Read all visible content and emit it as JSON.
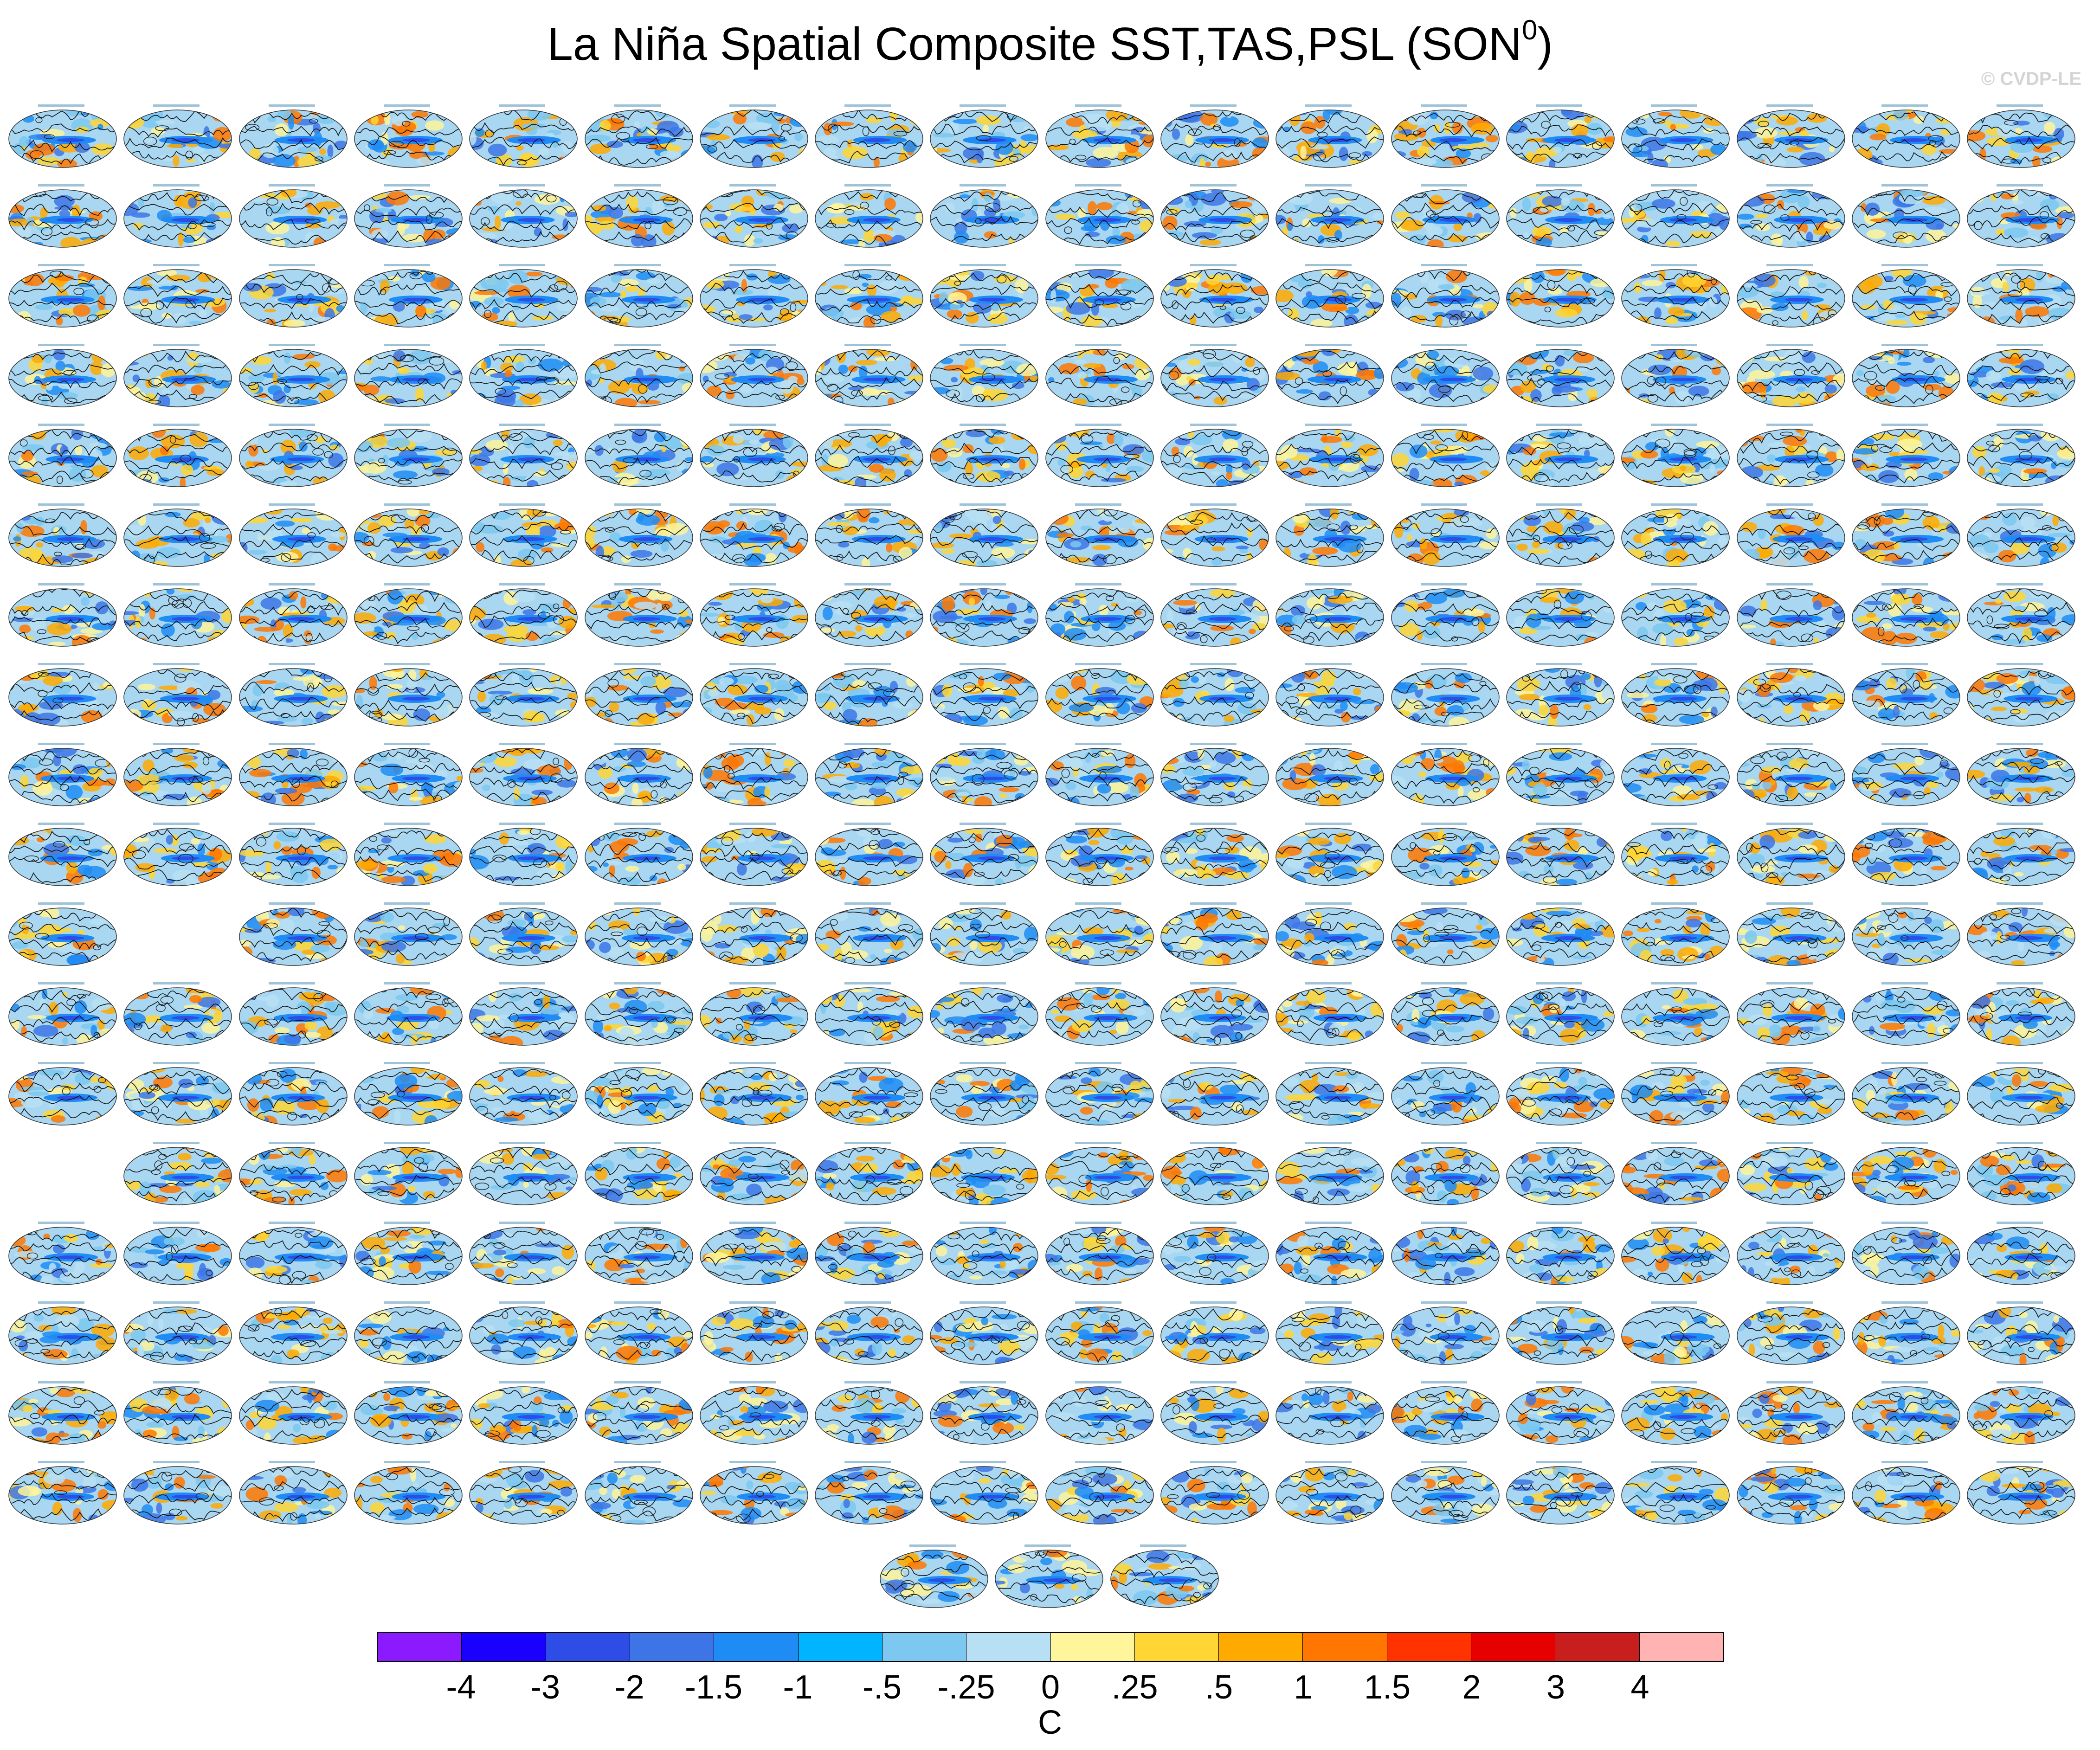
{
  "title": {
    "main": "La Niña Spatial Composite SST,TAS,PSL (SON",
    "superscript": "0",
    "close": ")"
  },
  "credit": "© CVDP-LE",
  "panels": {
    "rows": [
      18,
      18,
      18,
      18,
      18,
      18,
      18,
      18,
      18,
      18,
      17,
      18,
      18,
      17,
      18,
      18,
      18,
      18,
      3
    ],
    "missing": [
      [
        10,
        1
      ],
      [
        13,
        0
      ]
    ]
  },
  "colorbar": {
    "colors": [
      "#8c1aff",
      "#1a00ff",
      "#2e4de6",
      "#3d75e6",
      "#1f8cf5",
      "#00b4ff",
      "#7dc8f0",
      "#b8e0f5",
      "#fff59a",
      "#ffd633",
      "#ffaa00",
      "#ff7700",
      "#ff3300",
      "#e60000",
      "#c81e1e",
      "#ffb3b3"
    ],
    "labels": [
      "-4",
      "-3",
      "-2",
      "-1.5",
      "-1",
      "-.5",
      "-.25",
      "0",
      ".25",
      ".5",
      "1",
      "1.5",
      "2",
      "3",
      "4"
    ],
    "units": "C"
  }
}
